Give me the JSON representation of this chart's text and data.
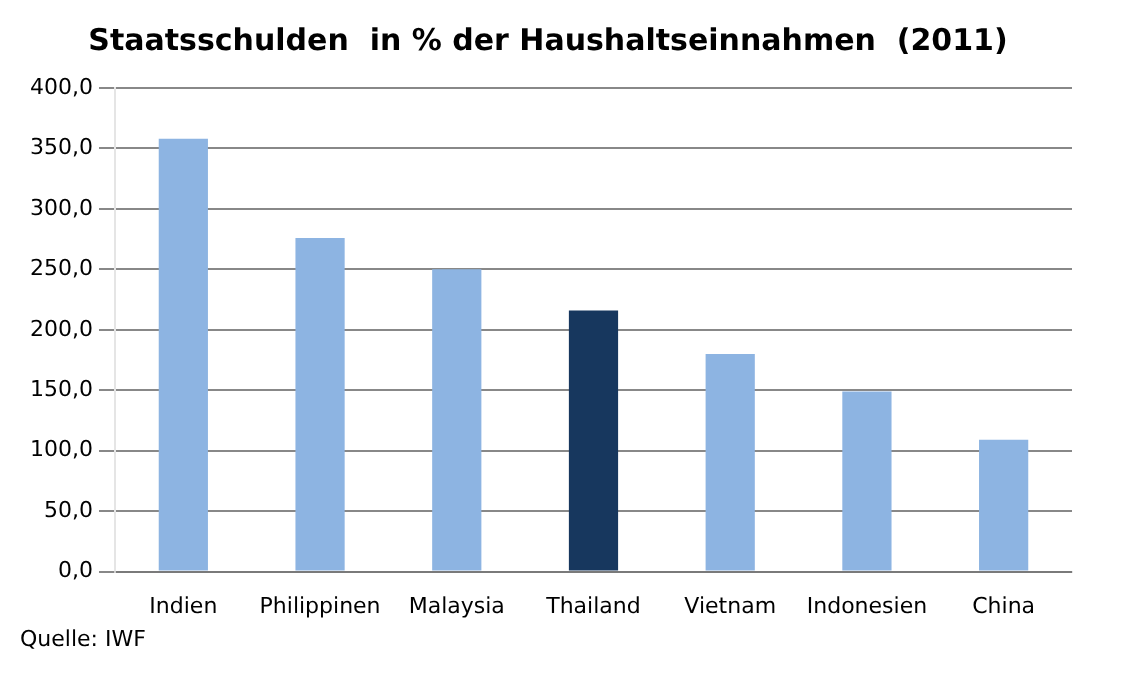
{
  "chart_data": {
    "type": "bar",
    "title": "Staatsschulden  in % der Haushaltseinnahmen  (2011)",
    "categories": [
      "Indien",
      "Philippinen",
      "Malaysia",
      "Thailand",
      "Vietnam",
      "Indonesien",
      "China"
    ],
    "values": [
      358,
      276,
      250,
      216,
      180,
      149,
      109
    ],
    "colors": [
      "#8db4e2",
      "#8db4e2",
      "#8db4e2",
      "#17375e",
      "#8db4e2",
      "#8db4e2",
      "#8db4e2"
    ],
    "ylim": [
      0,
      400
    ],
    "yticks": [
      {
        "value": 0,
        "label": "0,0"
      },
      {
        "value": 50,
        "label": "50,0"
      },
      {
        "value": 100,
        "label": "100,0"
      },
      {
        "value": 150,
        "label": "150,0"
      },
      {
        "value": 200,
        "label": "200,0"
      },
      {
        "value": 250,
        "label": "250,0"
      },
      {
        "value": 300,
        "label": "300,0"
      },
      {
        "value": 350,
        "label": "350,0"
      },
      {
        "value": 400,
        "label": "400,0"
      }
    ],
    "grid": "y",
    "annotations": [
      "Quelle: IWF"
    ]
  }
}
